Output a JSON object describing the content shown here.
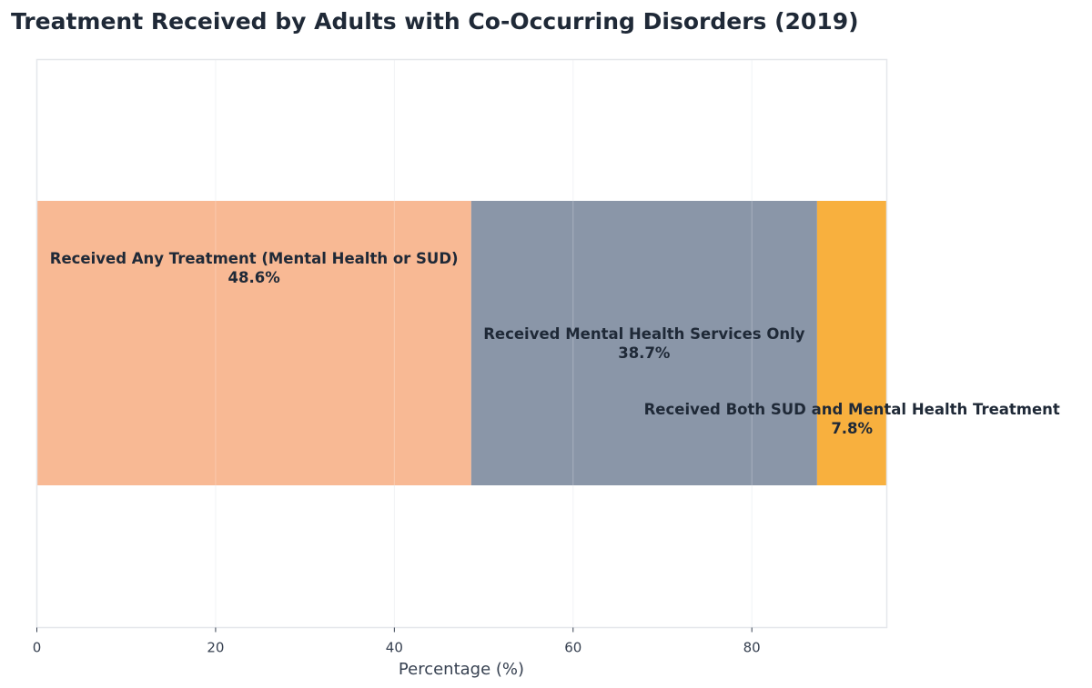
{
  "chart_data": {
    "type": "bar",
    "orientation": "horizontal-stacked",
    "title": "Treatment Received by Adults with Co-Occurring Disorders (2019)",
    "xlabel": "Percentage (%)",
    "ylabel": "",
    "xlim": [
      0,
      95.1
    ],
    "xticks": [
      0,
      20,
      40,
      60,
      80
    ],
    "grid": true,
    "segments": [
      {
        "name": "Received Any Treatment (Mental Health or SUD)",
        "value": 48.6,
        "label": "48.6%",
        "color": "#F8B994"
      },
      {
        "name": "Received Mental Health Services Only",
        "value": 38.7,
        "label": "38.7%",
        "color": "#8A96A8"
      },
      {
        "name": "Received Both SUD and Mental Health Treatment",
        "value": 7.8,
        "label": "7.8%",
        "color": "#F8B03E"
      }
    ]
  }
}
